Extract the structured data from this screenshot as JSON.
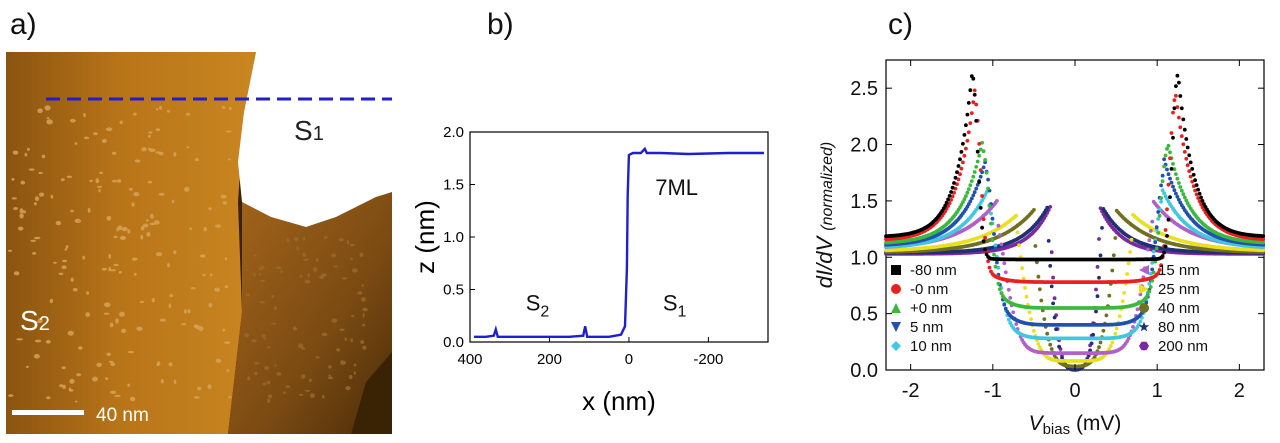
{
  "panels": {
    "a": "a)",
    "b": "b)",
    "c": "c)"
  },
  "stm": {
    "regions": {
      "s1": "S",
      "s1_sub": "1",
      "s2": "S",
      "s2_sub": "2"
    },
    "scalebar": "40 nm",
    "colors": {
      "dark": "#3a2205",
      "terrace_low": "#8a5410",
      "terrace_high": "#c07a1c",
      "top": "#ffffff",
      "line": "#1f1fd0",
      "islands": "#d6a257"
    }
  },
  "chart_data": [
    {
      "type": "line",
      "panel": "b",
      "xlabel": "x (nm)",
      "ylabel": "z (nm)",
      "xlim": [
        400,
        -350
      ],
      "ylim": [
        0,
        2.0
      ],
      "xticks": [
        400,
        200,
        0,
        -200
      ],
      "yticks": [
        0.0,
        0.5,
        1.0,
        1.5,
        2.0
      ],
      "annotations": [
        {
          "text": "7ML",
          "x": -120,
          "y": 1.4
        },
        {
          "text": "S",
          "sub": "2",
          "x": 230,
          "y": 0.3
        },
        {
          "text": "S",
          "sub": "1",
          "x": -115,
          "y": 0.3
        }
      ],
      "series": [
        {
          "color": "#1f1fd0",
          "x": [
            390,
            360,
            340,
            335,
            330,
            300,
            260,
            200,
            150,
            115,
            110,
            105,
            80,
            50,
            20,
            10,
            5,
            3,
            0,
            -5,
            -10,
            -30,
            -40,
            -45,
            -80,
            -150,
            -250,
            -340
          ],
          "y": [
            0.05,
            0.05,
            0.06,
            0.12,
            0.05,
            0.05,
            0.05,
            0.05,
            0.05,
            0.06,
            0.15,
            0.05,
            0.05,
            0.05,
            0.07,
            0.15,
            0.7,
            1.4,
            1.78,
            1.79,
            1.8,
            1.8,
            1.84,
            1.8,
            1.8,
            1.79,
            1.8,
            1.8
          ]
        }
      ]
    },
    {
      "type": "scatter",
      "panel": "c",
      "xlabel": "V",
      "xlabel_sub": "bias",
      "xlabel_unit": " (mV)",
      "ylabel": "dI/dV",
      "ylabel_suffix": "(normalized)",
      "xlim": [
        -2.3,
        2.3
      ],
      "ylim": [
        0,
        2.75
      ],
      "xticks": [
        -2,
        -1,
        0,
        1,
        2
      ],
      "yticks": [
        0.0,
        0.5,
        1.0,
        1.5,
        2.0,
        2.5
      ],
      "series": [
        {
          "name": "-80 nm",
          "color": "#000000",
          "marker": "square",
          "peakV": 1.25,
          "peakH": 2.65,
          "width": 0.09,
          "gap": 0.02,
          "base": 1.18
        },
        {
          "name": "-0 nm",
          "color": "#e82020",
          "marker": "circle",
          "peakV": 1.22,
          "peakH": 2.48,
          "width": 0.1,
          "gap": 0.22,
          "base": 1.15
        },
        {
          "name": "+0 nm",
          "color": "#3cb83c",
          "marker": "triangle-up",
          "peakV": 1.12,
          "peakH": 2.05,
          "width": 0.12,
          "gap": 0.45,
          "base": 1.12
        },
        {
          "name": "5 nm",
          "color": "#2050b0",
          "marker": "triangle-down",
          "peakV": 1.08,
          "peakH": 1.88,
          "width": 0.13,
          "gap": 0.6,
          "base": 1.1
        },
        {
          "name": "10 nm",
          "color": "#40c8e0",
          "marker": "diamond",
          "peakV": 1.05,
          "peakH": 1.62,
          "width": 0.15,
          "gap": 0.72,
          "base": 1.08
        },
        {
          "name": "15 nm",
          "color": "#b060c8",
          "marker": "triangle-left",
          "peakV": 0.95,
          "peakH": 1.5,
          "width": 0.2,
          "gap": 0.85,
          "base": 1.07
        },
        {
          "name": "25 nm",
          "color": "#e8e020",
          "marker": "triangle-right",
          "peakV": 0.7,
          "peakH": 1.38,
          "width": 0.22,
          "gap": 0.92,
          "base": 1.05
        },
        {
          "name": "40 nm",
          "color": "#707020",
          "marker": "circle",
          "peakV": 0.5,
          "peakH": 1.42,
          "width": 0.2,
          "gap": 0.97,
          "base": 1.04
        },
        {
          "name": "80 nm",
          "color": "#203070",
          "marker": "star",
          "peakV": 0.33,
          "peakH": 1.45,
          "width": 0.14,
          "gap": 1.0,
          "base": 1.04
        },
        {
          "name": "200 nm",
          "color": "#7a2aa0",
          "marker": "hexagon",
          "peakV": 0.3,
          "peakH": 1.45,
          "width": 0.12,
          "gap": 1.0,
          "base": 1.03
        }
      ]
    }
  ]
}
